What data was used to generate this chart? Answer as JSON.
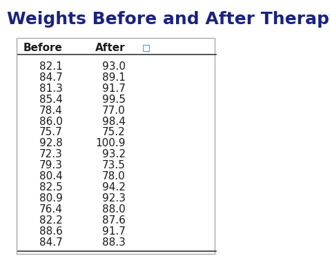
{
  "title": "Weights Before and After Therapy",
  "title_color": "#1a237e",
  "title_fontsize": 18,
  "col_headers": [
    "Before",
    "After"
  ],
  "before": [
    82.1,
    84.7,
    81.3,
    85.4,
    78.4,
    86.0,
    75.7,
    92.8,
    72.3,
    79.3,
    80.4,
    82.5,
    80.9,
    76.4,
    82.2,
    88.6,
    84.7
  ],
  "after": [
    93.0,
    89.1,
    91.7,
    99.5,
    77.0,
    98.4,
    75.2,
    100.9,
    93.2,
    73.5,
    78.0,
    94.2,
    92.3,
    88.0,
    87.6,
    91.7,
    88.3
  ],
  "bg_color": "#ffffff",
  "table_bg": "#ffffff",
  "border_color": "#aaaaaa",
  "header_fontsize": 11,
  "data_fontsize": 11,
  "text_color": "#1a1a1a",
  "header_text_color": "#1a1a1a"
}
